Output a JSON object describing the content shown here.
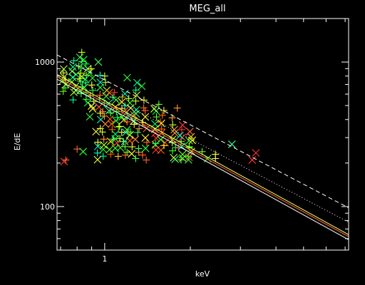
{
  "chart_data": {
    "type": "scatter",
    "title": "MEG_all",
    "xlabel": "keV",
    "ylabel": "E/dE",
    "xscale": "log",
    "yscale": "log",
    "xlim": [
      0.68,
      7.2
    ],
    "ylim": [
      50,
      2000
    ],
    "x_tick_labels": [
      {
        "value": 1,
        "label": "1"
      }
    ],
    "y_tick_labels": [
      {
        "value": 100,
        "label": "100"
      },
      {
        "value": 1000,
        "label": "1000"
      }
    ],
    "background": "#000000",
    "axis_color": "#ffffff",
    "curves": [
      {
        "style": "dashed",
        "color": "#ffffff",
        "points": [
          [
            0.68,
            1120
          ],
          [
            7.2,
            98
          ]
        ]
      },
      {
        "style": "dotted",
        "color": "#ffffff",
        "points": [
          [
            0.68,
            900
          ],
          [
            7.2,
            78
          ]
        ]
      },
      {
        "style": "solid",
        "color": "#ffff66",
        "points": [
          [
            0.68,
            820
          ],
          [
            7.2,
            64
          ]
        ]
      },
      {
        "style": "solid",
        "color": "#ff6633",
        "points": [
          [
            0.68,
            790
          ],
          [
            7.2,
            62
          ]
        ]
      },
      {
        "style": "solid",
        "color": "#ffffff",
        "points": [
          [
            0.68,
            760
          ],
          [
            7.2,
            59
          ]
        ]
      }
    ],
    "clusters": [
      {
        "x": 0.72,
        "ymin": 620,
        "ymax": 900,
        "n": 8,
        "colors": [
          "#33ff33",
          "#66ff00",
          "#ccff33"
        ]
      },
      {
        "x": 0.78,
        "ymin": 560,
        "ymax": 1000,
        "n": 10,
        "colors": [
          "#33ff33",
          "#00ff99",
          "#99ff33"
        ]
      },
      {
        "x": 0.82,
        "ymin": 600,
        "ymax": 1150,
        "n": 12,
        "colors": [
          "#33ff66",
          "#66ff33",
          "#ccff00"
        ]
      },
      {
        "x": 0.86,
        "ymin": 520,
        "ymax": 1050,
        "n": 10,
        "colors": [
          "#00ff66",
          "#33ff33",
          "#99ff66"
        ]
      },
      {
        "x": 0.9,
        "ymin": 430,
        "ymax": 900,
        "n": 10,
        "colors": [
          "#33ff33",
          "#ccff33",
          "#ffff33"
        ]
      },
      {
        "x": 0.95,
        "ymin": 210,
        "ymax": 820,
        "n": 14,
        "colors": [
          "#33ff33",
          "#ffff33",
          "#ff6633",
          "#00ffcc"
        ]
      },
      {
        "x": 1.0,
        "ymin": 220,
        "ymax": 700,
        "n": 12,
        "colors": [
          "#33ff33",
          "#ccff33",
          "#ff9933",
          "#00ff99"
        ]
      },
      {
        "x": 1.05,
        "ymin": 230,
        "ymax": 620,
        "n": 12,
        "colors": [
          "#66ff33",
          "#ffff00",
          "#ff6600",
          "#33ff99"
        ]
      },
      {
        "x": 1.1,
        "ymin": 230,
        "ymax": 600,
        "n": 12,
        "colors": [
          "#33ff33",
          "#ffcc33",
          "#ff3333",
          "#00ff66"
        ]
      },
      {
        "x": 1.15,
        "ymin": 250,
        "ymax": 560,
        "n": 10,
        "colors": [
          "#33ff33",
          "#ffff33",
          "#ff9900"
        ]
      },
      {
        "x": 1.2,
        "ymin": 220,
        "ymax": 600,
        "n": 12,
        "colors": [
          "#66ff33",
          "#ccff33",
          "#ff6633",
          "#00ffcc"
        ]
      },
      {
        "x": 1.25,
        "ymin": 240,
        "ymax": 520,
        "n": 10,
        "colors": [
          "#33ff33",
          "#ffff33",
          "#ff6600"
        ]
      },
      {
        "x": 1.3,
        "ymin": 210,
        "ymax": 650,
        "n": 12,
        "colors": [
          "#33ff66",
          "#ccff33",
          "#ff9933",
          "#00ff99"
        ]
      },
      {
        "x": 1.38,
        "ymin": 230,
        "ymax": 540,
        "n": 10,
        "colors": [
          "#33ff33",
          "#ffff33",
          "#ff6633"
        ]
      },
      {
        "x": 1.5,
        "ymin": 240,
        "ymax": 480,
        "n": 10,
        "colors": [
          "#66ff33",
          "#ccff33",
          "#ff3333",
          "#00ff66"
        ]
      },
      {
        "x": 1.6,
        "ymin": 240,
        "ymax": 450,
        "n": 10,
        "colors": [
          "#33ff33",
          "#ffff33",
          "#ff6600"
        ]
      },
      {
        "x": 1.75,
        "ymin": 210,
        "ymax": 400,
        "n": 10,
        "colors": [
          "#33ff33",
          "#ccff33",
          "#ff9933",
          "#00ff99"
        ]
      },
      {
        "x": 1.85,
        "ymin": 210,
        "ymax": 360,
        "n": 10,
        "colors": [
          "#66ff33",
          "#ffff33",
          "#ff3333",
          "#00ffcc"
        ]
      },
      {
        "x": 2.0,
        "ymin": 210,
        "ymax": 320,
        "n": 10,
        "colors": [
          "#33ff33",
          "#ffff00",
          "#ff6633",
          "#ffcc33"
        ]
      }
    ],
    "points": [
      {
        "x": 0.72,
        "y": 205,
        "marker": "x",
        "color": "#ff3333"
      },
      {
        "x": 0.73,
        "y": 210,
        "marker": "plus",
        "color": "#ff6633"
      },
      {
        "x": 0.8,
        "y": 250,
        "marker": "plus",
        "color": "#ff6633"
      },
      {
        "x": 0.84,
        "y": 240,
        "marker": "x",
        "color": "#33ff33"
      },
      {
        "x": 0.95,
        "y": 1000,
        "marker": "x",
        "color": "#33ff66"
      },
      {
        "x": 1.0,
        "y": 800,
        "marker": "plus",
        "color": "#ccff33"
      },
      {
        "x": 1.2,
        "y": 780,
        "marker": "x",
        "color": "#33ff33"
      },
      {
        "x": 1.3,
        "y": 720,
        "marker": "x",
        "color": "#00ff99"
      },
      {
        "x": 1.35,
        "y": 680,
        "marker": "x",
        "color": "#33ff33"
      },
      {
        "x": 1.4,
        "y": 210,
        "marker": "plus",
        "color": "#ff6633"
      },
      {
        "x": 1.55,
        "y": 510,
        "marker": "plus",
        "color": "#66ff33"
      },
      {
        "x": 1.8,
        "y": 480,
        "marker": "plus",
        "color": "#ff9933"
      },
      {
        "x": 2.2,
        "y": 240,
        "marker": "plus",
        "color": "#66ff33"
      },
      {
        "x": 2.3,
        "y": 215,
        "marker": "x",
        "color": "#33ff33"
      },
      {
        "x": 2.45,
        "y": 230,
        "marker": "plus",
        "color": "#ffff33"
      },
      {
        "x": 2.45,
        "y": 215,
        "marker": "plus",
        "color": "#ffff66"
      },
      {
        "x": 2.8,
        "y": 270,
        "marker": "x",
        "color": "#33ff99"
      },
      {
        "x": 3.3,
        "y": 210,
        "marker": "x",
        "color": "#ff3333"
      },
      {
        "x": 3.4,
        "y": 235,
        "marker": "x",
        "color": "#ff3333"
      }
    ]
  }
}
